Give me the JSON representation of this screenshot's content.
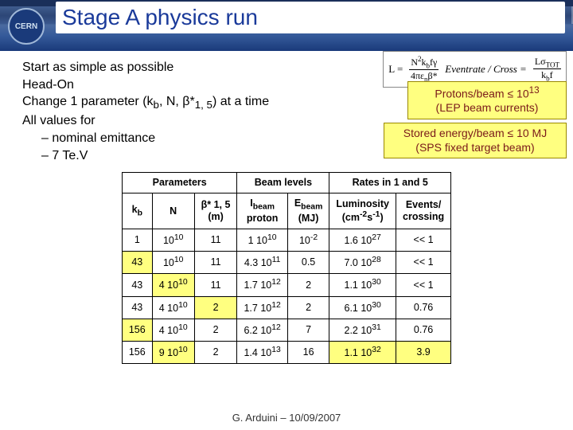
{
  "title": "Stage A physics run",
  "logo_text": "CERN",
  "intro": {
    "l1": "Start as simple as possible",
    "l2": "Head-On",
    "l3_a": "Change 1 parameter (k",
    "l3_b": ", N, β*",
    "l3_c": ") at a time",
    "l4": "All values for",
    "s1": "–  nominal emittance",
    "s2": "–  7 Te.V"
  },
  "callout1_a": "Protons/beam ≤ 10",
  "callout1_exp": "13",
  "callout1_b": "(LEP beam currents)",
  "callout2_a": "Stored energy/beam ≤ 10 MJ",
  "callout2_b": "(SPS fixed target beam)",
  "formula": {
    "lhs": "L =",
    "num": "N²k_b f γ",
    "den": "4πε_n β*",
    "mid": "Eventrate / Cross =",
    "num2": "Lσ_TOT",
    "den2": "k_b f"
  },
  "table": {
    "group_headers": [
      "Parameters",
      "Beam levels",
      "Rates in 1 and 5"
    ],
    "sub_headers": {
      "c1": "k",
      "c1s": "b",
      "c2": "N",
      "c3a": "β* 1, 5",
      "c3b": "(m)",
      "c4a": "I",
      "c4s": "beam",
      "c4b": "proton",
      "c5a": "E",
      "c5s": "beam",
      "c5b": "(MJ)",
      "c6a": "Luminosity",
      "c6b": "(cm",
      "c6e1": "-2",
      "c6m": "s",
      "c6e2": "-1",
      "c6c": ")",
      "c7a": "Events/",
      "c7b": "crossing"
    },
    "rows": [
      {
        "kb": "1",
        "N": "10",
        "Ne": "10",
        "beta": "11",
        "Ib": "1  10",
        "Ibe": "10",
        "Eb": "10",
        "Ebe": "-2",
        "L": "1.6  10",
        "Le": "27",
        "ev": "<< 1",
        "hl": []
      },
      {
        "kb": "43",
        "N": "10",
        "Ne": "10",
        "beta": "11",
        "Ib": "4.3  10",
        "Ibe": "11",
        "Eb": "0.5",
        "Ebe": "",
        "L": "7.0  10",
        "Le": "28",
        "ev": "<< 1",
        "hl": [
          "kb"
        ]
      },
      {
        "kb": "43",
        "N": "4  10",
        "Ne": "10",
        "beta": "11",
        "Ib": "1.7  10",
        "Ibe": "12",
        "Eb": "2",
        "Ebe": "",
        "L": "1.1  10",
        "Le": "30",
        "ev": "<< 1",
        "hl": [
          "N"
        ]
      },
      {
        "kb": "43",
        "N": "4  10",
        "Ne": "10",
        "beta": "2",
        "Ib": "1.7  10",
        "Ibe": "12",
        "Eb": "2",
        "Ebe": "",
        "L": "6.1  10",
        "Le": "30",
        "ev": "0.76",
        "hl": [
          "beta"
        ]
      },
      {
        "kb": "156",
        "N": "4  10",
        "Ne": "10",
        "beta": "2",
        "Ib": "6.2  10",
        "Ibe": "12",
        "Eb": "7",
        "Ebe": "",
        "L": "2.2  10",
        "Le": "31",
        "ev": "0.76",
        "hl": [
          "kb"
        ]
      },
      {
        "kb": "156",
        "N": "9  10",
        "Ne": "10",
        "beta": "2",
        "Ib": "1.4  10",
        "Ibe": "13",
        "Eb": "16",
        "Ebe": "",
        "L": "1.1  10",
        "Le": "32",
        "ev": "3.9",
        "hl": [
          "N",
          "L",
          "ev"
        ]
      }
    ]
  },
  "footer": "G. Arduini – 10/09/2007",
  "colors": {
    "highlight": "#ffff80",
    "callout_text": "#7a1a1a",
    "title": "#1a3a9a"
  }
}
